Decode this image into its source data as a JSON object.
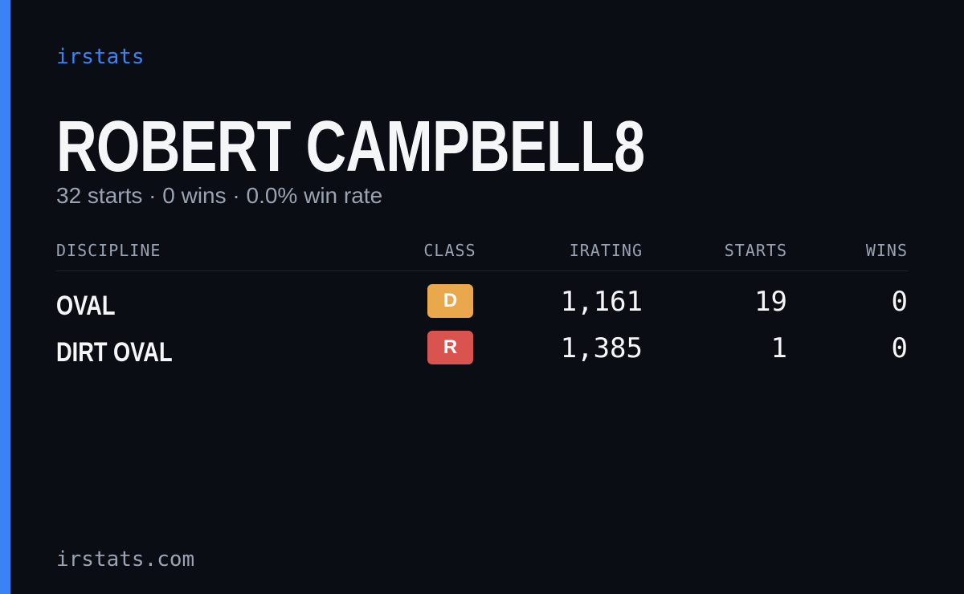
{
  "header": {
    "brand": "irstats",
    "name": "ROBERT CAMPBELL8",
    "summary": "32 starts · 0 wins · 0.0% win rate"
  },
  "table": {
    "columns": [
      "DISCIPLINE",
      "CLASS",
      "IRATING",
      "STARTS",
      "WINS"
    ],
    "rows": [
      {
        "discipline": "OVAL",
        "class": "D",
        "class_color": "#e9a84c",
        "irating": "1,161",
        "starts": "19",
        "wins": "0"
      },
      {
        "discipline": "DIRT OVAL",
        "class": "R",
        "class_color": "#d9534f",
        "irating": "1,385",
        "starts": "1",
        "wins": "0"
      }
    ]
  },
  "footer": {
    "site": "irstats.com"
  }
}
